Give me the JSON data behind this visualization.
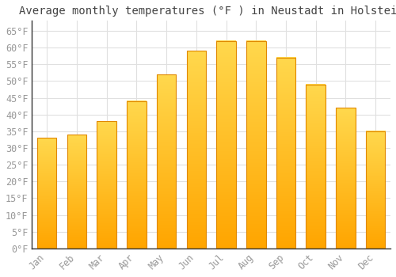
{
  "title": "Average monthly temperatures (°F ) in Neustadt in Holstein",
  "months": [
    "Jan",
    "Feb",
    "Mar",
    "Apr",
    "May",
    "Jun",
    "Jul",
    "Aug",
    "Sep",
    "Oct",
    "Nov",
    "Dec"
  ],
  "values": [
    33,
    34,
    38,
    44,
    52,
    59,
    62,
    62,
    57,
    49,
    42,
    35
  ],
  "bar_color_top": "#FFD84D",
  "bar_color_bottom": "#FFA500",
  "bar_edge_color": "#E08800",
  "background_color": "#FFFFFF",
  "grid_color": "#E0E0E0",
  "ylim": [
    0,
    68
  ],
  "yticks": [
    0,
    5,
    10,
    15,
    20,
    25,
    30,
    35,
    40,
    45,
    50,
    55,
    60,
    65
  ],
  "title_fontsize": 10,
  "tick_fontsize": 8.5,
  "font_family": "monospace",
  "tick_color": "#999999",
  "spine_color": "#333333"
}
